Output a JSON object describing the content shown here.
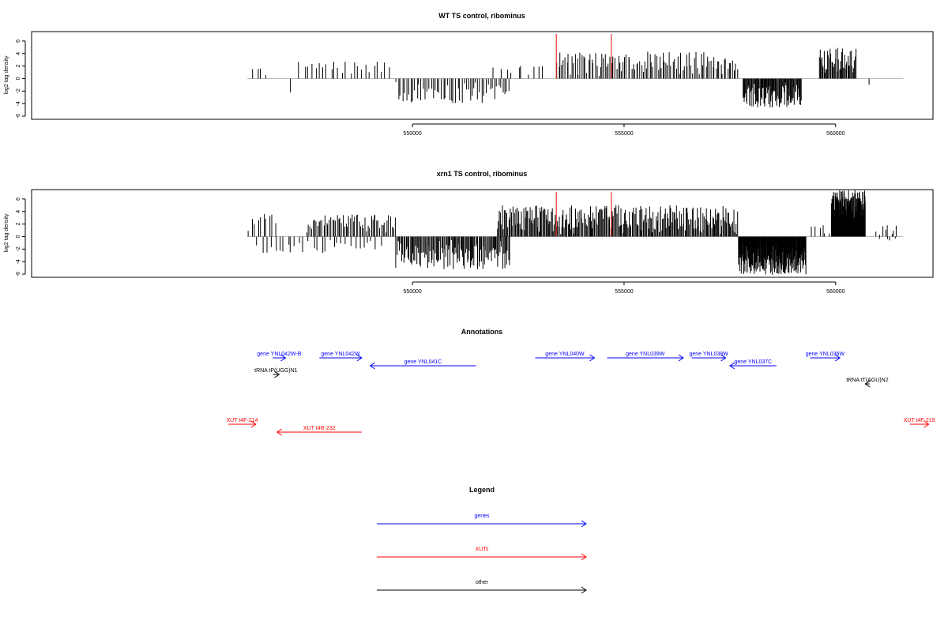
{
  "chart_data": [
    {
      "type": "bar",
      "title": "WT TS control, ribominus",
      "ylabel": "log2 tag density",
      "xlabel": "",
      "xlim": [
        541000,
        562300
      ],
      "ylim": [
        -6.5,
        7.5
      ],
      "yticks": [
        -6,
        -4,
        -2,
        0,
        2,
        4,
        6
      ],
      "xticks": [
        550000,
        555000,
        560000
      ],
      "xtick_labels": [
        "550000",
        "555000",
        "560000"
      ],
      "baseline_range": [
        546100,
        561600
      ],
      "markers": [
        553400,
        554700
      ],
      "marker_color": "#e8322a",
      "bar_color": "#000000",
      "segments": [
        {
          "type": "pos",
          "range": [
            546200,
            546600
          ],
          "n": 4,
          "min": 0.4,
          "max": 1.6
        },
        {
          "type": "pos",
          "range": [
            547300,
            549500
          ],
          "n": 24,
          "min": 0.4,
          "max": 2.7
        },
        {
          "type": "neg",
          "range": [
            547100,
            547200
          ],
          "n": 1,
          "min": 1.8,
          "max": 2.2
        },
        {
          "type": "neg",
          "range": [
            549600,
            552300
          ],
          "n": 56,
          "min": 0.5,
          "max": 3.9
        },
        {
          "type": "pos",
          "range": [
            551900,
            553200
          ],
          "n": 10,
          "min": 0.4,
          "max": 2.0
        },
        {
          "type": "pos",
          "range": [
            553400,
            557700
          ],
          "n": 110,
          "min": 0.4,
          "max": 4.3
        },
        {
          "type": "neg",
          "range": [
            557800,
            559200
          ],
          "n": 85,
          "min": 0.6,
          "max": 4.6
        },
        {
          "type": "pos",
          "range": [
            559600,
            560500
          ],
          "n": 45,
          "min": 0.6,
          "max": 4.9
        },
        {
          "type": "neg",
          "range": [
            560700,
            560800
          ],
          "n": 1,
          "min": 0.5,
          "max": 1.0
        }
      ]
    },
    {
      "type": "bar",
      "title": "xrn1 TS control, ribominus",
      "ylabel": "log2 tag density",
      "xlabel": "",
      "xlim": [
        541000,
        562300
      ],
      "ylim": [
        -6.5,
        7.5
      ],
      "yticks": [
        -6,
        -4,
        -2,
        0,
        2,
        4,
        6
      ],
      "xticks": [
        550000,
        555000,
        560000
      ],
      "xtick_labels": [
        "550000",
        "555000",
        "560000"
      ],
      "baseline_range": [
        546100,
        561600
      ],
      "markers": [
        553400,
        554700
      ],
      "marker_color": "#e8322a",
      "bar_color": "#000000",
      "segments": [
        {
          "type": "pos",
          "range": [
            546100,
            546800
          ],
          "n": 10,
          "min": 0.4,
          "max": 3.6
        },
        {
          "type": "neg",
          "range": [
            546300,
            549300
          ],
          "n": 30,
          "min": 0.4,
          "max": 2.6
        },
        {
          "type": "pos",
          "range": [
            547500,
            549600
          ],
          "n": 60,
          "min": 0.4,
          "max": 3.5
        },
        {
          "type": "neg",
          "range": [
            549600,
            552300
          ],
          "n": 120,
          "min": 0.5,
          "max": 5.2
        },
        {
          "type": "pos",
          "range": [
            552000,
            557700
          ],
          "n": 260,
          "min": 0.4,
          "max": 5.0
        },
        {
          "type": "neg",
          "range": [
            557700,
            559300
          ],
          "n": 180,
          "min": 0.8,
          "max": 6.1
        },
        {
          "type": "pos",
          "range": [
            559400,
            559900
          ],
          "n": 6,
          "min": 0.4,
          "max": 1.8
        },
        {
          "type": "pos",
          "range": [
            559900,
            560700
          ],
          "n": 140,
          "min": 1.0,
          "max": 7.4
        },
        {
          "type": "pos",
          "range": [
            560900,
            561500
          ],
          "n": 8,
          "min": 0.2,
          "max": 1.8
        },
        {
          "type": "neg",
          "range": [
            561000,
            561500
          ],
          "n": 4,
          "min": 0.2,
          "max": 0.6
        }
      ]
    }
  ],
  "annotations": {
    "title": "Annotations",
    "genes_color": "#0000ff",
    "xuts_color": "#ff0000",
    "other_color": "#000000",
    "features": [
      {
        "label": "gene YNL042W-B",
        "category": "gene",
        "start": 546700,
        "end": 547000,
        "strand": "+",
        "row": "gene-upper"
      },
      {
        "label": "gene YNL042W",
        "category": "gene",
        "start": 547800,
        "end": 548800,
        "strand": "+",
        "row": "gene-upper"
      },
      {
        "label": "gene YNL041C",
        "category": "gene",
        "start": 549000,
        "end": 551500,
        "strand": "-",
        "row": "gene-lower"
      },
      {
        "label": "gene YNL040W",
        "category": "gene",
        "start": 552900,
        "end": 554300,
        "strand": "+",
        "row": "gene-upper"
      },
      {
        "label": "gene YNL039W",
        "category": "gene",
        "start": 554600,
        "end": 556400,
        "strand": "+",
        "row": "gene-upper"
      },
      {
        "label": "gene YNL038W",
        "category": "gene",
        "start": 556600,
        "end": 557400,
        "strand": "+",
        "row": "gene-upper"
      },
      {
        "label": "gene YNL037C",
        "category": "gene",
        "start": 557500,
        "end": 558600,
        "strand": "-",
        "row": "gene-lower"
      },
      {
        "label": "gene YNL036W",
        "category": "gene",
        "start": 559400,
        "end": 560100,
        "strand": "+",
        "row": "gene-upper"
      },
      {
        "label": "tRNA tP(UGG)N1",
        "category": "other",
        "start": 546700,
        "end": 546850,
        "strand": "+",
        "row": "other-left"
      },
      {
        "label": "tRNA tT(AGU)N2",
        "category": "other",
        "start": 560700,
        "end": 560800,
        "strand": "-",
        "row": "other-right"
      },
      {
        "label": "XUT t4F-214",
        "category": "xut",
        "start": 545650,
        "end": 546300,
        "strand": "+",
        "row": "xut"
      },
      {
        "label": "XUT t4R-232",
        "category": "xut",
        "start": 546800,
        "end": 548800,
        "strand": "-",
        "row": "xut-lower"
      },
      {
        "label": "XUT t4F-219",
        "category": "xut",
        "start": 561750,
        "end": 562200,
        "strand": "+",
        "row": "xut"
      }
    ]
  },
  "legend": {
    "title": "Legend",
    "items": [
      {
        "label": "genes",
        "color": "#0000ff"
      },
      {
        "label": "XUTs",
        "color": "#ff0000"
      },
      {
        "label": "other",
        "color": "#000000"
      }
    ]
  }
}
